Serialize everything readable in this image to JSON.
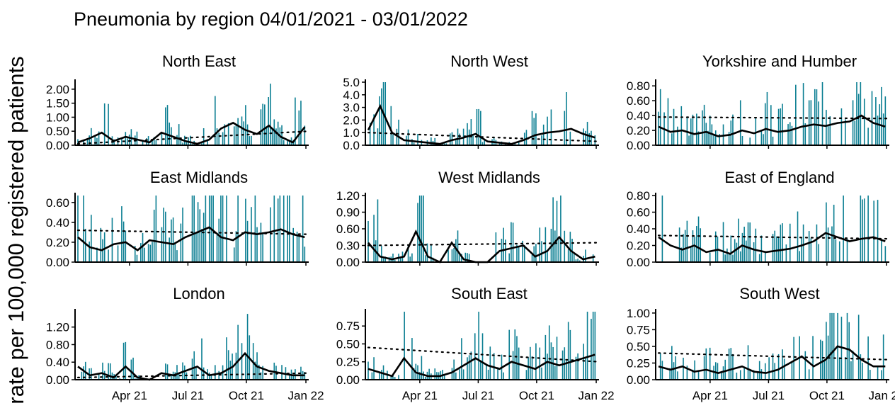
{
  "title": "Pneumonia by region 04/01/2021 - 03/01/2022",
  "ylabel": "rate per 100,000 registered patients",
  "colors": {
    "bars": "#0a7e92",
    "rolling_mean": "#000000",
    "trend": "#000000",
    "axis": "#000000"
  },
  "x_ticks": [
    "Apr 21",
    "Jul 21",
    "Oct 21",
    "Jan 22"
  ],
  "chart_data": [
    {
      "type": "bar",
      "region": "North East",
      "x_range": [
        "2021-01-04",
        "2022-01-03"
      ],
      "ylim": [
        0,
        2.25
      ],
      "yticks": [
        0,
        0.5,
        1.0,
        1.5,
        2.0
      ],
      "ytick_labels": [
        "0.00",
        "0.50",
        "1.00",
        "1.50",
        "2.00"
      ],
      "daily_max": 2.2,
      "rolling_mean": [
        0.1,
        0.25,
        0.45,
        0.15,
        0.3,
        0.2,
        0.1,
        0.45,
        0.3,
        0.15,
        0.05,
        0.2,
        0.6,
        0.8,
        0.55,
        0.4,
        0.7,
        0.3,
        0.1,
        0.65
      ],
      "trend_start": 0.05,
      "trend_end": 0.5
    },
    {
      "type": "bar",
      "region": "North West",
      "x_range": [
        "2021-01-04",
        "2022-01-03"
      ],
      "ylim": [
        0,
        5.0
      ],
      "yticks": [
        0,
        1,
        2,
        3,
        4,
        5
      ],
      "ytick_labels": [
        "0.0",
        "1.0",
        "2.0",
        "3.0",
        "4.0",
        "5.0"
      ],
      "daily_max": 5.0,
      "rolling_mean": [
        1.2,
        3.1,
        1.0,
        0.4,
        0.3,
        0.2,
        0.1,
        0.4,
        0.6,
        0.9,
        0.3,
        0.2,
        0.1,
        0.4,
        0.8,
        1.0,
        1.1,
        1.3,
        0.9,
        0.6
      ],
      "trend_start": 1.0,
      "trend_end": 0.3
    },
    {
      "type": "bar",
      "region": "Yorkshire and Humber",
      "x_range": [
        "2021-01-04",
        "2022-01-03"
      ],
      "ylim": [
        0,
        0.85
      ],
      "yticks": [
        0,
        0.2,
        0.4,
        0.6,
        0.8
      ],
      "ytick_labels": [
        "0.00",
        "0.20",
        "0.40",
        "0.60",
        "0.80"
      ],
      "daily_max": 0.85,
      "rolling_mean": [
        0.25,
        0.18,
        0.2,
        0.15,
        0.18,
        0.12,
        0.14,
        0.2,
        0.16,
        0.22,
        0.18,
        0.2,
        0.25,
        0.28,
        0.26,
        0.3,
        0.32,
        0.4,
        0.3,
        0.25
      ],
      "trend_start": 0.38,
      "trend_end": 0.36
    },
    {
      "type": "bar",
      "region": "East Midlands",
      "x_range": [
        "2021-01-04",
        "2022-01-03"
      ],
      "ylim": [
        0,
        0.67
      ],
      "yticks": [
        0,
        0.2,
        0.4,
        0.6
      ],
      "ytick_labels": [
        "0.00",
        "0.20",
        "0.40",
        "0.60"
      ],
      "daily_max": 0.67,
      "rolling_mean": [
        0.25,
        0.15,
        0.12,
        0.18,
        0.2,
        0.12,
        0.22,
        0.2,
        0.18,
        0.25,
        0.3,
        0.35,
        0.25,
        0.22,
        0.3,
        0.28,
        0.3,
        0.33,
        0.28,
        0.25
      ],
      "trend_start": 0.32,
      "trend_end": 0.28
    },
    {
      "type": "bar",
      "region": "West Midlands",
      "x_range": [
        "2021-01-04",
        "2022-01-03"
      ],
      "ylim": [
        0,
        1.2
      ],
      "yticks": [
        0,
        0.3,
        0.6,
        0.9,
        1.2
      ],
      "ytick_labels": [
        "0.00",
        "0.30",
        "0.60",
        "0.90",
        "1.20"
      ],
      "daily_max": 1.2,
      "rolling_mean": [
        0.35,
        0.1,
        0.05,
        0.1,
        0.55,
        0.1,
        0.0,
        0.35,
        0.05,
        0.0,
        0.0,
        0.2,
        0.25,
        0.3,
        0.1,
        0.2,
        0.45,
        0.2,
        0.05,
        0.1
      ],
      "trend_start": 0.3,
      "trend_end": 0.35
    },
    {
      "type": "bar",
      "region": "East of England",
      "x_range": [
        "2021-01-04",
        "2022-01-03"
      ],
      "ylim": [
        0,
        0.8
      ],
      "yticks": [
        0,
        0.2,
        0.4,
        0.6,
        0.8
      ],
      "ytick_labels": [
        "0.00",
        "0.20",
        "0.40",
        "0.60",
        "0.80"
      ],
      "daily_max": 0.8,
      "rolling_mean": [
        0.3,
        0.2,
        0.15,
        0.2,
        0.12,
        0.15,
        0.1,
        0.2,
        0.15,
        0.12,
        0.14,
        0.16,
        0.2,
        0.25,
        0.35,
        0.3,
        0.25,
        0.28,
        0.3,
        0.25
      ],
      "trend_start": 0.32,
      "trend_end": 0.28
    },
    {
      "type": "bar",
      "region": "London",
      "x_range": [
        "2021-01-04",
        "2022-01-03"
      ],
      "ylim": [
        0,
        1.55
      ],
      "yticks": [
        0,
        0.4,
        0.8,
        1.2
      ],
      "ytick_labels": [
        "0.00",
        "0.40",
        "0.80",
        "1.20"
      ],
      "daily_max": 1.5,
      "rolling_mean": [
        0.3,
        0.1,
        0.15,
        0.05,
        0.3,
        0.05,
        0.0,
        0.15,
        0.1,
        0.2,
        0.3,
        0.1,
        0.15,
        0.3,
        0.6,
        0.3,
        0.2,
        0.15,
        0.1,
        0.1
      ],
      "trend_start": 0.05,
      "trend_end": 0.15
    },
    {
      "type": "bar",
      "region": "South East",
      "x_range": [
        "2021-01-04",
        "2022-01-03"
      ],
      "ylim": [
        0,
        0.95
      ],
      "yticks": [
        0,
        0.25,
        0.5,
        0.75
      ],
      "ytick_labels": [
        "0.00",
        "0.25",
        "0.50",
        "0.75"
      ],
      "daily_max": 0.95,
      "rolling_mean": [
        0.15,
        0.1,
        0.05,
        0.3,
        0.1,
        0.05,
        0.05,
        0.1,
        0.2,
        0.3,
        0.2,
        0.15,
        0.25,
        0.2,
        0.15,
        0.25,
        0.2,
        0.25,
        0.3,
        0.35
      ],
      "trend_start": 0.45,
      "trend_end": 0.25
    },
    {
      "type": "bar",
      "region": "South West",
      "x_range": [
        "2021-01-04",
        "2022-01-03"
      ],
      "ylim": [
        0,
        1.02
      ],
      "yticks": [
        0,
        0.25,
        0.5,
        0.75,
        1.0
      ],
      "ytick_labels": [
        "0.00",
        "0.25",
        "0.50",
        "0.75",
        "1.00"
      ],
      "daily_max": 1.0,
      "rolling_mean": [
        0.2,
        0.15,
        0.2,
        0.12,
        0.15,
        0.1,
        0.15,
        0.2,
        0.12,
        0.1,
        0.15,
        0.25,
        0.35,
        0.2,
        0.3,
        0.5,
        0.45,
        0.3,
        0.2,
        0.2
      ],
      "trend_start": 0.4,
      "trend_end": 0.3
    }
  ]
}
